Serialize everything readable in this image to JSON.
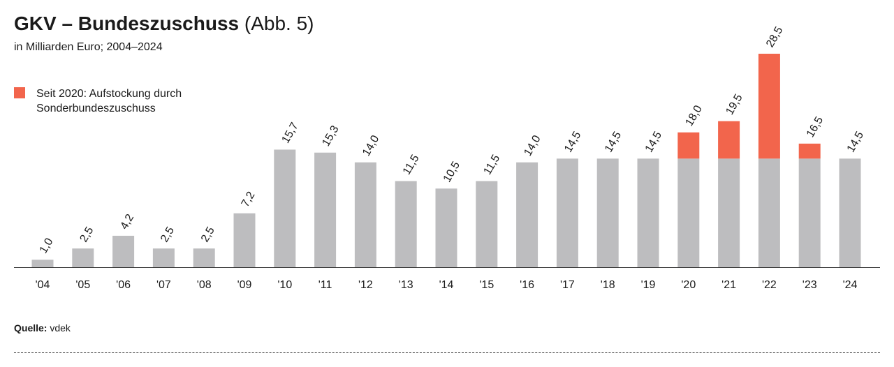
{
  "header": {
    "title_bold": "GKV – Bundeszuschuss",
    "title_light": "(Abb. 5)",
    "subtitle": "in Milliarden Euro; 2004–2024"
  },
  "legend": {
    "label": "Seit 2020: Aufstockung durch Sonderbundeszuschuss"
  },
  "source": {
    "label": "Quelle:",
    "value": "vdek"
  },
  "colors": {
    "base": "#bdbdbf",
    "special": "#f2654c",
    "axis": "#333333",
    "text": "#1a1a1a"
  },
  "chart_data": {
    "type": "bar",
    "stacked": true,
    "categories": [
      "'04",
      "'05",
      "'06",
      "'07",
      "'08",
      "'09",
      "'10",
      "'11",
      "'12",
      "'13",
      "'14",
      "'15",
      "'16",
      "'17",
      "'18",
      "'19",
      "'20",
      "'21",
      "'22",
      "'23",
      "'24"
    ],
    "series": [
      {
        "values": [
          1.0,
          2.5,
          4.2,
          2.5,
          2.5,
          7.2,
          15.7,
          15.3,
          14.0,
          11.5,
          10.5,
          11.5,
          14.0,
          14.5,
          14.5,
          14.5,
          14.5,
          14.5,
          14.5,
          14.5,
          14.5
        ]
      },
      {
        "name": "Seit 2020: Aufstockung durch Sonderbundeszuschuss",
        "values": [
          0,
          0,
          0,
          0,
          0,
          0,
          0,
          0,
          0,
          0,
          0,
          0,
          0,
          0,
          0,
          0,
          3.5,
          5.0,
          14.0,
          2.0,
          0
        ]
      }
    ],
    "total_labels": [
      "1,0",
      "2,5",
      "4,2",
      "2,5",
      "2,5",
      "7,2",
      "15,7",
      "15,3",
      "14,0",
      "11,5",
      "10,5",
      "11,5",
      "14,0",
      "14,5",
      "14,5",
      "14,5",
      "18,0",
      "19,5",
      "28,5",
      "16,5",
      "14,5"
    ],
    "ylim": [
      0,
      28.5
    ],
    "grid": false,
    "legend_position": "top-left"
  }
}
